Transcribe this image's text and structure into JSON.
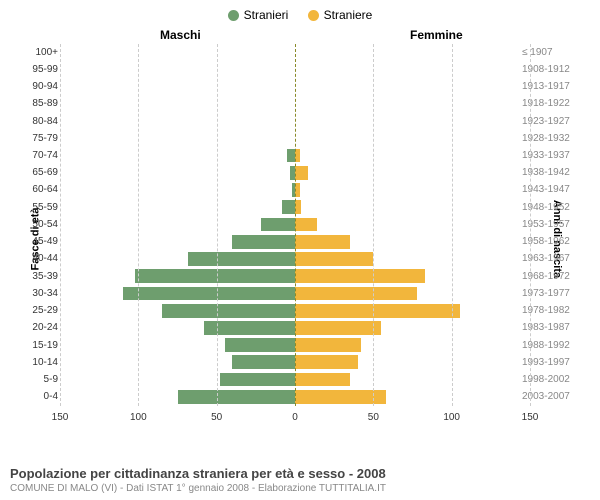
{
  "legend": {
    "male": "Stranieri",
    "female": "Straniere"
  },
  "headers": {
    "male": "Maschi",
    "female": "Femmine"
  },
  "axis": {
    "left_title": "Fasce di età",
    "right_title": "Anni di nascita"
  },
  "colors": {
    "male": "#6e9e6e",
    "female": "#f2b63c",
    "grid": "#cccccc",
    "center": "#8a8a2a",
    "bg": "#ffffff"
  },
  "chart": {
    "type": "population-pyramid",
    "xmax": 150,
    "xticks": [
      150,
      100,
      50,
      0,
      50,
      100,
      150
    ],
    "rows": [
      {
        "age": "100+",
        "birth": "≤ 1907",
        "m": 0,
        "f": 0
      },
      {
        "age": "95-99",
        "birth": "1908-1912",
        "m": 0,
        "f": 0
      },
      {
        "age": "90-94",
        "birth": "1913-1917",
        "m": 0,
        "f": 0
      },
      {
        "age": "85-89",
        "birth": "1918-1922",
        "m": 0,
        "f": 0
      },
      {
        "age": "80-84",
        "birth": "1923-1927",
        "m": 0,
        "f": 0
      },
      {
        "age": "75-79",
        "birth": "1928-1932",
        "m": 0,
        "f": 0
      },
      {
        "age": "70-74",
        "birth": "1933-1937",
        "m": 5,
        "f": 3
      },
      {
        "age": "65-69",
        "birth": "1938-1942",
        "m": 3,
        "f": 8
      },
      {
        "age": "60-64",
        "birth": "1943-1947",
        "m": 2,
        "f": 3
      },
      {
        "age": "55-59",
        "birth": "1948-1952",
        "m": 8,
        "f": 4
      },
      {
        "age": "50-54",
        "birth": "1953-1957",
        "m": 22,
        "f": 14
      },
      {
        "age": "45-49",
        "birth": "1958-1962",
        "m": 40,
        "f": 35
      },
      {
        "age": "40-44",
        "birth": "1963-1967",
        "m": 68,
        "f": 50
      },
      {
        "age": "35-39",
        "birth": "1968-1972",
        "m": 102,
        "f": 83
      },
      {
        "age": "30-34",
        "birth": "1973-1977",
        "m": 110,
        "f": 78
      },
      {
        "age": "25-29",
        "birth": "1978-1982",
        "m": 85,
        "f": 105
      },
      {
        "age": "20-24",
        "birth": "1983-1987",
        "m": 58,
        "f": 55
      },
      {
        "age": "15-19",
        "birth": "1988-1992",
        "m": 45,
        "f": 42
      },
      {
        "age": "10-14",
        "birth": "1993-1997",
        "m": 40,
        "f": 40
      },
      {
        "age": "5-9",
        "birth": "1998-2002",
        "m": 48,
        "f": 35
      },
      {
        "age": "0-4",
        "birth": "2003-2007",
        "m": 75,
        "f": 58
      }
    ]
  },
  "footer": {
    "title": "Popolazione per cittadinanza straniera per età e sesso - 2008",
    "subtitle": "COMUNE DI MALO (VI) - Dati ISTAT 1° gennaio 2008 - Elaborazione TUTTITALIA.IT"
  }
}
